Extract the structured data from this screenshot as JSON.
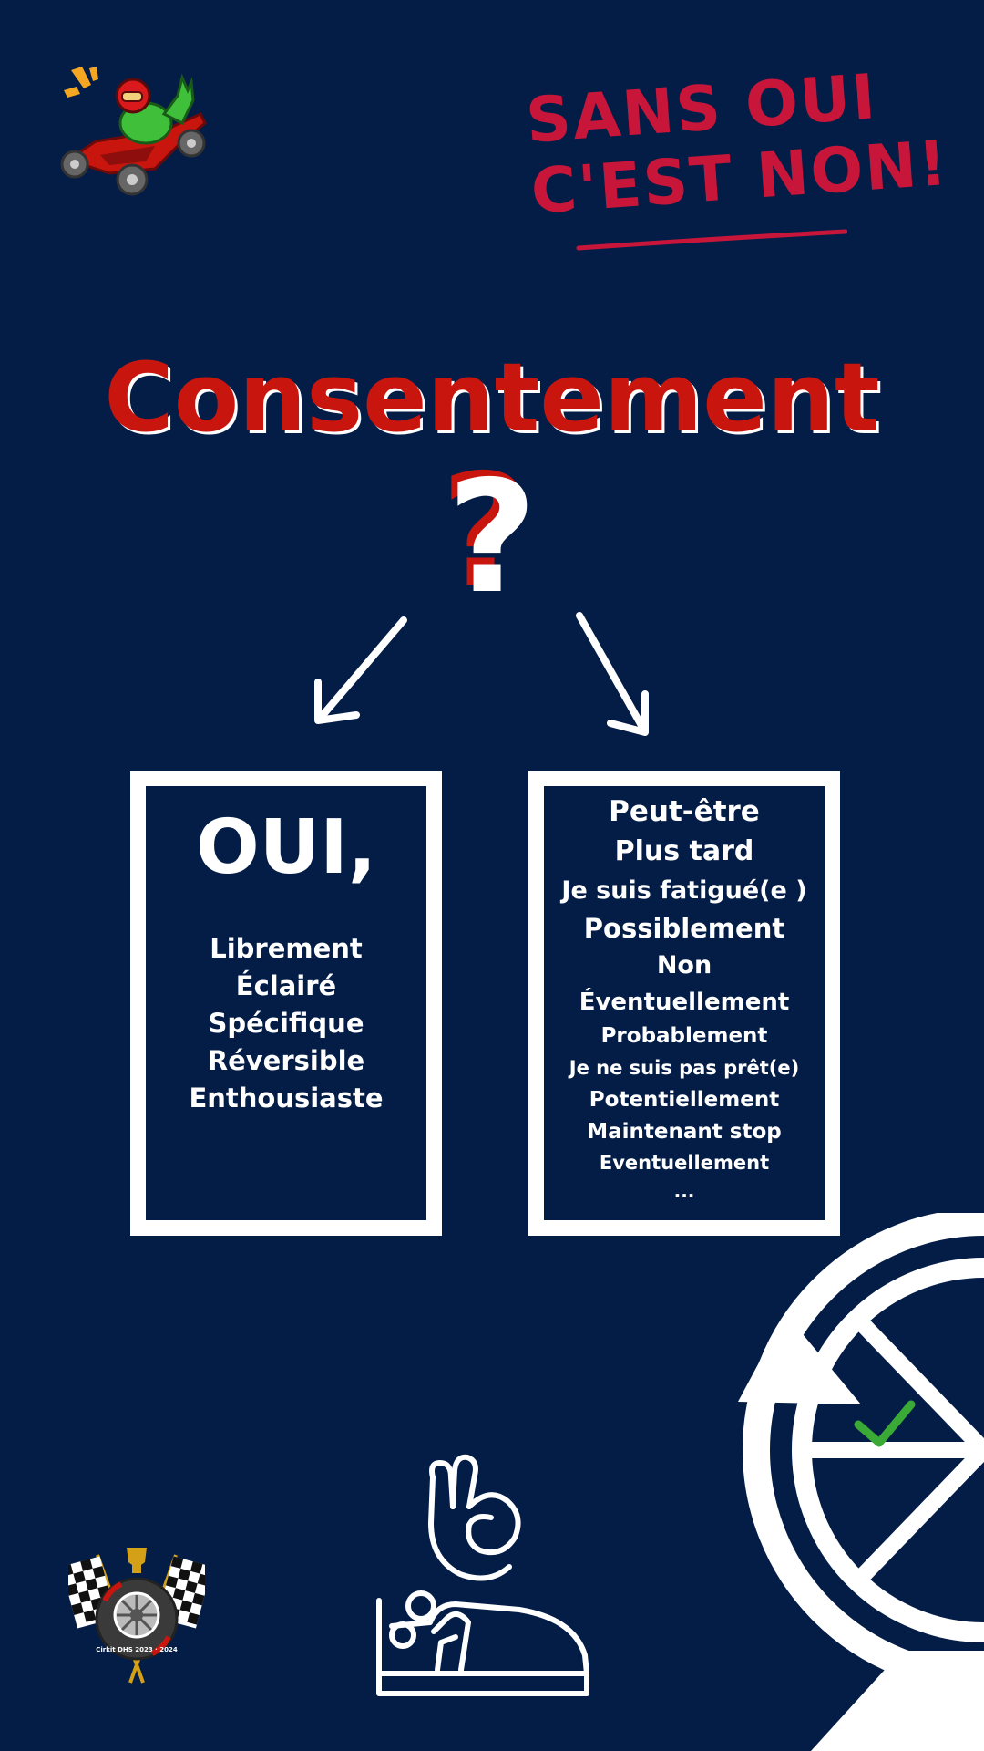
{
  "slogan": {
    "line1": "SANS OUI",
    "line2": "C'EST NON!"
  },
  "title": "Consentement",
  "question_mark": "?",
  "yes_box": {
    "heading": "OUI,",
    "items": [
      "Librement",
      "Éclairé",
      "Spécifique",
      "Réversible",
      "Enthousiaste"
    ]
  },
  "other_box": {
    "items": [
      "Peut-être",
      "Plus tard",
      "Je suis fatigué(e )",
      "Possiblement",
      "Non",
      "Éventuellement",
      "Probablement",
      "Je ne suis pas prêt(e)",
      "Potentiellement",
      "Maintenant stop",
      "Eventuellement",
      "..."
    ]
  },
  "badge_text": "Cirkit DHS 2023 · 2024",
  "colors": {
    "background": "#041d47",
    "accent_red": "#c8160f",
    "slogan_red": "#c8163a",
    "white": "#ffffff",
    "check_green": "#3aa935"
  },
  "icons": [
    "dino-kart-logo",
    "down-left-arrow-icon",
    "down-right-arrow-icon",
    "ok-hand-icon",
    "bed-couple-icon",
    "steering-wheel-icon",
    "checkmark-icon",
    "racing-badge-logo"
  ]
}
